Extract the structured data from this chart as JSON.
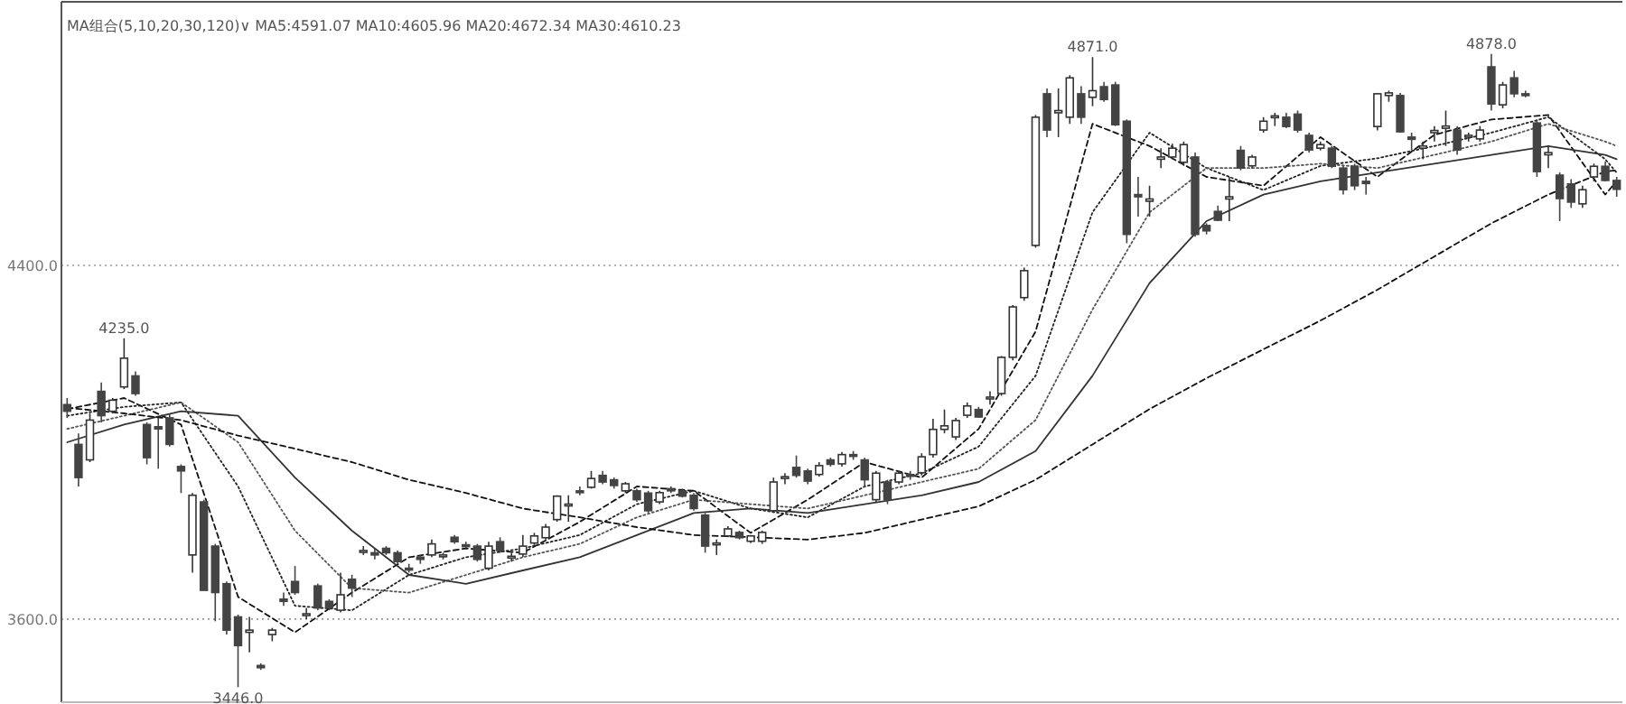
{
  "chart_data": {
    "type": "candlestick",
    "categories": [
      null,
      null,
      null,
      null,
      null,
      null,
      null,
      null,
      null,
      null,
      null,
      null,
      null,
      null,
      null,
      null,
      null,
      null,
      null,
      null,
      null,
      null,
      null,
      null,
      null,
      null,
      null,
      null,
      null,
      null,
      null,
      null,
      null,
      null,
      null,
      null,
      null,
      null,
      null,
      null,
      null,
      null,
      null,
      null,
      null,
      null,
      null,
      null,
      null,
      null,
      null,
      null,
      null,
      null,
      null,
      null,
      null,
      null,
      null,
      null,
      null,
      null,
      null,
      null,
      null,
      null,
      null,
      null,
      null,
      null,
      null,
      null,
      null,
      null,
      null,
      null,
      null,
      null,
      null,
      null,
      null,
      null,
      null,
      null,
      null,
      null,
      null,
      null,
      null,
      null,
      null,
      null,
      null,
      null,
      null,
      null,
      null,
      null,
      null,
      null,
      null,
      null,
      null,
      null,
      null,
      null,
      null,
      null,
      null,
      null,
      null,
      null,
      null,
      null,
      null,
      null,
      null,
      null,
      null,
      null,
      null,
      null,
      null,
      null,
      null,
      null,
      null,
      null,
      null,
      null,
      null,
      null,
      null,
      null,
      null,
      null,
      null
    ],
    "ohlc": [
      [
        4085,
        4100,
        4055,
        4070
      ],
      [
        3995,
        4020,
        3900,
        3920
      ],
      [
        3960,
        4065,
        3955,
        4050
      ],
      [
        4115,
        4135,
        4045,
        4060
      ],
      [
        4070,
        4100,
        4065,
        4095
      ],
      [
        4125,
        4235,
        4120,
        4190
      ],
      [
        4150,
        4160,
        4105,
        4110
      ],
      [
        4040,
        4045,
        3950,
        3965
      ],
      [
        4035,
        4055,
        3940,
        4030
      ],
      [
        4055,
        4065,
        3990,
        3995
      ],
      [
        3945,
        3950,
        3885,
        3935
      ],
      [
        3745,
        3885,
        3705,
        3880
      ],
      [
        3865,
        3870,
        3665,
        3665
      ],
      [
        3765,
        3770,
        3595,
        3660
      ],
      [
        3680,
        3685,
        3565,
        3575
      ],
      [
        3605,
        3610,
        3446,
        3540
      ],
      [
        3570,
        3605,
        3525,
        3575
      ],
      [
        3495,
        3500,
        3485,
        3490
      ],
      [
        3565,
        3580,
        3550,
        3575
      ],
      [
        3645,
        3660,
        3630,
        3640
      ],
      [
        3685,
        3720,
        3655,
        3660
      ],
      [
        3610,
        3625,
        3600,
        3612
      ],
      [
        3675,
        3680,
        3620,
        3625
      ],
      [
        3640,
        3645,
        3620,
        3625
      ],
      [
        3620,
        3705,
        3615,
        3655
      ],
      [
        3690,
        3700,
        3650,
        3670
      ],
      [
        3755,
        3765,
        3745,
        3755
      ],
      [
        3750,
        3760,
        3735,
        3745
      ],
      [
        3760,
        3765,
        3745,
        3750
      ],
      [
        3750,
        3755,
        3725,
        3730
      ],
      [
        3715,
        3725,
        3705,
        3712
      ],
      [
        3740,
        3745,
        3725,
        3735
      ],
      [
        3745,
        3780,
        3740,
        3770
      ],
      [
        3745,
        3750,
        3735,
        3745
      ],
      [
        3785,
        3790,
        3770,
        3775
      ],
      [
        3768,
        3775,
        3760,
        3766
      ],
      [
        3765,
        3770,
        3730,
        3735
      ],
      [
        3715,
        3775,
        3710,
        3765
      ],
      [
        3775,
        3785,
        3750,
        3755
      ],
      [
        3740,
        3750,
        3730,
        3742
      ],
      [
        3747,
        3790,
        3740,
        3765
      ],
      [
        3772,
        3795,
        3768,
        3788
      ],
      [
        3784,
        3815,
        3780,
        3808
      ],
      [
        3825,
        3880,
        3820,
        3878
      ],
      [
        3857,
        3880,
        3820,
        3860
      ],
      [
        3890,
        3900,
        3880,
        3888
      ],
      [
        3898,
        3935,
        3895,
        3918
      ],
      [
        3925,
        3935,
        3905,
        3910
      ],
      [
        3915,
        3920,
        3895,
        3902
      ],
      [
        3890,
        3910,
        3885,
        3906
      ],
      [
        3890,
        3895,
        3865,
        3870
      ],
      [
        3885,
        3890,
        3840,
        3845
      ],
      [
        3865,
        3890,
        3860,
        3886
      ],
      [
        3895,
        3900,
        3885,
        3890
      ],
      [
        3890,
        3895,
        3875,
        3878
      ],
      [
        3880,
        3885,
        3845,
        3850
      ],
      [
        3835,
        3840,
        3750,
        3765
      ],
      [
        3770,
        3780,
        3745,
        3772
      ],
      [
        3788,
        3810,
        3785,
        3804
      ],
      [
        3796,
        3800,
        3780,
        3784
      ],
      [
        3776,
        3790,
        3772,
        3788
      ],
      [
        3776,
        3800,
        3770,
        3796
      ],
      [
        3845,
        3920,
        3840,
        3910
      ],
      [
        3920,
        3930,
        3905,
        3922
      ],
      [
        3943,
        3970,
        3920,
        3925
      ],
      [
        3935,
        3940,
        3905,
        3912
      ],
      [
        3927,
        3955,
        3922,
        3947
      ],
      [
        3960,
        3965,
        3945,
        3950
      ],
      [
        3951,
        3978,
        3945,
        3972
      ],
      [
        3972,
        3980,
        3960,
        3968
      ],
      [
        3960,
        3965,
        3898,
        3915
      ],
      [
        3870,
        3935,
        3865,
        3930
      ],
      [
        3910,
        3915,
        3860,
        3870
      ],
      [
        3910,
        3935,
        3905,
        3930
      ],
      [
        3927,
        3935,
        3915,
        3925
      ],
      [
        3931,
        3975,
        3925,
        3967
      ],
      [
        3972,
        4053,
        3965,
        4029
      ],
      [
        4029,
        4074,
        4020,
        4037
      ],
      [
        4012,
        4055,
        4005,
        4049
      ],
      [
        4061,
        4090,
        4055,
        4082
      ],
      [
        4074,
        4080,
        4055,
        4057
      ],
      [
        4100,
        4115,
        4085,
        4102
      ],
      [
        4110,
        4195,
        4105,
        4192
      ],
      [
        4192,
        4310,
        4185,
        4306
      ],
      [
        4327,
        4395,
        4320,
        4388
      ],
      [
        4445,
        4740,
        4440,
        4735
      ],
      [
        4788,
        4800,
        4690,
        4706
      ],
      [
        4745,
        4800,
        4690,
        4750
      ],
      [
        4735,
        4830,
        4720,
        4824
      ],
      [
        4788,
        4805,
        4720,
        4735
      ],
      [
        4780,
        4871,
        4760,
        4795
      ],
      [
        4804,
        4815,
        4770,
        4775
      ],
      [
        4808,
        4815,
        4715,
        4718
      ],
      [
        4726,
        4730,
        4450,
        4470
      ],
      [
        4560,
        4600,
        4510,
        4555
      ],
      [
        4545,
        4580,
        4510,
        4550
      ],
      [
        4640,
        4665,
        4620,
        4645
      ],
      [
        4645,
        4675,
        4640,
        4665
      ],
      [
        4633,
        4680,
        4625,
        4673
      ],
      [
        4645,
        4655,
        4465,
        4470
      ],
      [
        4490,
        4495,
        4470,
        4478
      ],
      [
        4522,
        4535,
        4500,
        4502
      ],
      [
        4550,
        4600,
        4500,
        4555
      ],
      [
        4660,
        4670,
        4615,
        4620
      ],
      [
        4625,
        4650,
        4620,
        4645
      ],
      [
        4706,
        4735,
        4700,
        4726
      ],
      [
        4735,
        4745,
        4715,
        4738
      ],
      [
        4735,
        4745,
        4710,
        4714
      ],
      [
        4742,
        4750,
        4700,
        4706
      ],
      [
        4694,
        4700,
        4655,
        4661
      ],
      [
        4665,
        4680,
        4660,
        4673
      ],
      [
        4665,
        4670,
        4620,
        4624
      ],
      [
        4620,
        4625,
        4560,
        4571
      ],
      [
        4624,
        4630,
        4570,
        4580
      ],
      [
        4590,
        4600,
        4560,
        4585
      ],
      [
        4714,
        4790,
        4705,
        4788
      ],
      [
        4784,
        4795,
        4770,
        4790
      ],
      [
        4784,
        4790,
        4700,
        4702
      ],
      [
        4690,
        4700,
        4660,
        4685
      ],
      [
        4665,
        4680,
        4640,
        4670
      ],
      [
        4700,
        4715,
        4680,
        4705
      ],
      [
        4710,
        4750,
        4670,
        4715
      ],
      [
        4706,
        4715,
        4650,
        4661
      ],
      [
        4690,
        4700,
        4680,
        4694
      ],
      [
        4686,
        4715,
        4680,
        4706
      ],
      [
        4849,
        4878,
        4750,
        4765
      ],
      [
        4763,
        4815,
        4755,
        4808
      ],
      [
        4824,
        4840,
        4780,
        4788
      ],
      [
        4788,
        4795,
        4780,
        4784
      ],
      [
        4722,
        4730,
        4600,
        4612
      ],
      [
        4650,
        4670,
        4620,
        4655
      ],
      [
        4604,
        4610,
        4500,
        4551
      ],
      [
        4584,
        4595,
        4530,
        4543
      ],
      [
        4539,
        4580,
        4530,
        4571
      ],
      [
        4600,
        4630,
        4590,
        4624
      ],
      [
        4624,
        4635,
        4590,
        4592
      ],
      [
        4592,
        4600,
        4555,
        4572
      ]
    ],
    "series": [
      {
        "type": "line",
        "color": "#111111",
        "line_style": "dashed",
        "values": [
          4075,
          null,
          null,
          null,
          null,
          4100,
          null,
          null,
          null,
          null,
          4040,
          null,
          null,
          null,
          null,
          3650,
          null,
          null,
          null,
          null,
          3570,
          null,
          null,
          null,
          null,
          3660,
          null,
          null,
          null,
          null,
          3740,
          null,
          null,
          null,
          null,
          3760,
          null,
          null,
          null,
          null,
          3750,
          null,
          null,
          null,
          null,
          3820,
          null,
          null,
          null,
          null,
          3900,
          null,
          null,
          null,
          null,
          3890,
          null,
          null,
          null,
          null,
          3795,
          null,
          null,
          null,
          null,
          3870,
          null,
          null,
          null,
          null,
          3955,
          null,
          null,
          null,
          null,
          3920,
          null,
          null,
          null,
          null,
          4030,
          null,
          null,
          null,
          null,
          4250,
          null,
          null,
          null,
          null,
          4720,
          null,
          null,
          null,
          null,
          4670,
          null,
          null,
          null,
          null,
          4600,
          null,
          null,
          null,
          null,
          4580,
          null,
          null,
          null,
          null,
          4690,
          null,
          null,
          null,
          null,
          4600,
          null,
          null,
          null,
          null,
          4695,
          null,
          null,
          null,
          null,
          4730,
          null,
          null,
          null,
          null,
          4740,
          null,
          null,
          null,
          null,
          4560,
          4590
        ]
      },
      {
        "type": "line",
        "color": "#222222",
        "line_style": "dotted",
        "values": [
          4060,
          null,
          null,
          null,
          null,
          4080,
          null,
          null,
          null,
          null,
          4090,
          null,
          null,
          null,
          null,
          3900,
          null,
          null,
          null,
          null,
          3630,
          null,
          null,
          null,
          null,
          3620,
          null,
          null,
          null,
          null,
          3700,
          null,
          null,
          null,
          null,
          3740,
          null,
          null,
          null,
          null,
          3760,
          null,
          null,
          null,
          null,
          3790,
          null,
          null,
          null,
          null,
          3860,
          null,
          null,
          null,
          null,
          3890,
          null,
          null,
          null,
          null,
          3850,
          null,
          null,
          null,
          null,
          3830,
          null,
          null,
          null,
          null,
          3900,
          null,
          null,
          null,
          null,
          3930,
          null,
          null,
          null,
          null,
          3990,
          null,
          null,
          null,
          null,
          4150,
          null,
          null,
          null,
          null,
          4520,
          null,
          null,
          null,
          null,
          4700,
          null,
          null,
          null,
          null,
          4620,
          null,
          null,
          null,
          null,
          4570,
          null,
          null,
          null,
          null,
          4625,
          null,
          null,
          null,
          null,
          4642,
          null,
          null,
          null,
          null,
          4670,
          null,
          null,
          null,
          null,
          4700,
          null,
          null,
          null,
          null,
          4735,
          null,
          null,
          null,
          null,
          4640,
          4610
        ]
      },
      {
        "type": "line",
        "color": "#555555",
        "line_style": "dotted",
        "values": [
          4030,
          null,
          null,
          null,
          null,
          4060,
          null,
          null,
          null,
          null,
          4090,
          null,
          null,
          null,
          null,
          4000,
          null,
          null,
          null,
          null,
          3800,
          null,
          null,
          null,
          null,
          3670,
          null,
          null,
          null,
          null,
          3660,
          null,
          null,
          null,
          null,
          3700,
          null,
          null,
          null,
          null,
          3740,
          null,
          null,
          null,
          null,
          3770,
          null,
          null,
          null,
          null,
          3830,
          null,
          null,
          null,
          null,
          3870,
          null,
          null,
          null,
          null,
          3860,
          null,
          null,
          null,
          null,
          3850,
          null,
          null,
          null,
          null,
          3880,
          null,
          null,
          null,
          null,
          3910,
          null,
          null,
          null,
          null,
          3940,
          null,
          null,
          null,
          null,
          4050,
          null,
          null,
          null,
          null,
          4300,
          null,
          null,
          null,
          null,
          4520,
          null,
          null,
          null,
          null,
          4620,
          null,
          null,
          null,
          null,
          4620,
          null,
          null,
          null,
          null,
          4630,
          null,
          null,
          null,
          null,
          4620,
          null,
          null,
          null,
          null,
          4650,
          null,
          null,
          null,
          null,
          4680,
          null,
          null,
          null,
          null,
          4720,
          null,
          null,
          null,
          null,
          4680,
          4670
        ]
      },
      {
        "type": "line",
        "color": "#333333",
        "line_style": "solid",
        "values": [
          4000,
          null,
          null,
          null,
          null,
          4040,
          null,
          null,
          null,
          null,
          4070,
          null,
          null,
          null,
          null,
          4060,
          null,
          null,
          null,
          null,
          3920,
          null,
          null,
          null,
          null,
          3800,
          null,
          null,
          null,
          null,
          3700,
          null,
          null,
          null,
          null,
          3680,
          null,
          null,
          null,
          null,
          3710,
          null,
          null,
          null,
          null,
          3740,
          null,
          null,
          null,
          null,
          3790,
          null,
          null,
          null,
          null,
          3840,
          null,
          null,
          null,
          null,
          3850,
          null,
          null,
          null,
          null,
          3840,
          null,
          null,
          null,
          null,
          3860,
          null,
          null,
          null,
          null,
          3880,
          null,
          null,
          null,
          null,
          3910,
          null,
          null,
          null,
          null,
          3980,
          null,
          null,
          null,
          null,
          4150,
          null,
          null,
          null,
          null,
          4360,
          null,
          null,
          null,
          null,
          4500,
          null,
          null,
          null,
          null,
          4560,
          null,
          null,
          null,
          null,
          4590,
          null,
          null,
          null,
          null,
          4610,
          null,
          null,
          null,
          null,
          4630,
          null,
          null,
          null,
          null,
          4650,
          null,
          null,
          null,
          null,
          4670,
          null,
          null,
          null,
          null,
          4650,
          4640
        ]
      },
      {
        "type": "line",
        "color": "#111111",
        "line_style": "dashed",
        "values": [
          4078,
          null,
          null,
          null,
          null,
          4065,
          null,
          null,
          null,
          null,
          4050,
          null,
          null,
          null,
          null,
          4015,
          null,
          null,
          null,
          null,
          3985,
          null,
          null,
          null,
          null,
          3955,
          null,
          null,
          null,
          null,
          3915,
          null,
          null,
          null,
          null,
          3885,
          null,
          null,
          null,
          null,
          3850,
          null,
          null,
          null,
          null,
          3830,
          null,
          null,
          null,
          null,
          3808,
          null,
          null,
          null,
          null,
          3790,
          null,
          null,
          null,
          null,
          3785,
          null,
          null,
          null,
          null,
          3780,
          null,
          null,
          null,
          null,
          3795,
          null,
          null,
          null,
          null,
          3825,
          null,
          null,
          null,
          null,
          3855,
          null,
          null,
          null,
          null,
          3915,
          null,
          null,
          null,
          null,
          3995,
          null,
          null,
          null,
          null,
          4075,
          null,
          null,
          null,
          null,
          4145,
          null,
          null,
          null,
          null,
          4210,
          null,
          null,
          null,
          null,
          4275,
          null,
          null,
          null,
          null,
          4345,
          null,
          null,
          null,
          null,
          4420,
          null,
          null,
          null,
          null,
          4495,
          null,
          null,
          null,
          null,
          4560,
          null,
          null,
          null,
          null,
          4612,
          4615
        ]
      }
    ],
    "ylim": [
      3412,
      4996
    ],
    "yticks": [
      {
        "value": 3600,
        "label": "3600.0"
      },
      {
        "value": 4400,
        "label": "4400.0"
      }
    ],
    "grid": "y",
    "tick_labels": "y",
    "annotations": [
      "MA组合(5,10,20,30,120)∨ MA5:4591.07 MA10:4605.96 MA20:4672.34 MA30:4610.23",
      "4235.0",
      "3446.0",
      "4871.0",
      "4878.0"
    ]
  }
}
